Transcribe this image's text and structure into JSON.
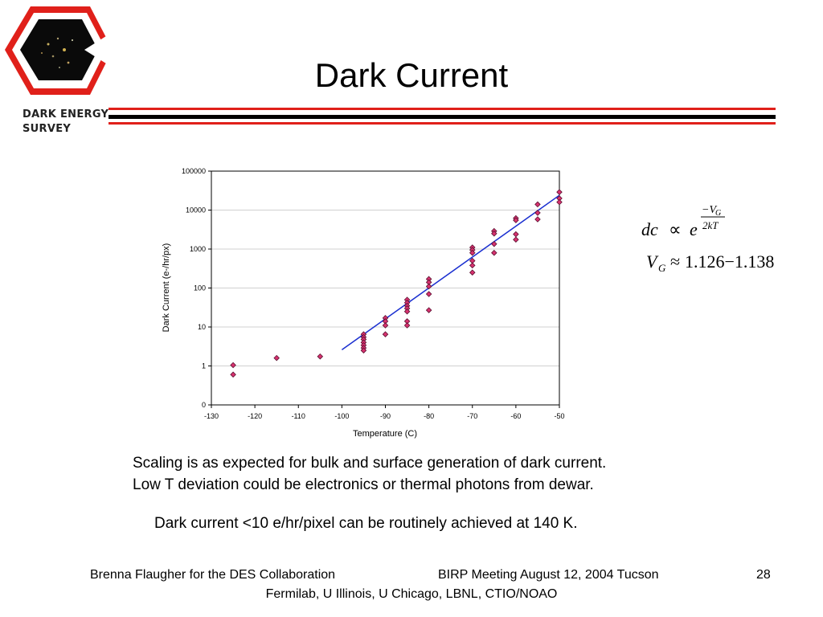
{
  "slide": {
    "title": "Dark Current",
    "logo": {
      "line1": "DARK ENERGY",
      "line2": "SURVEY"
    },
    "body": {
      "line1": "Scaling is as expected for bulk and surface generation of dark current.",
      "line2": "Low T deviation could be electronics or thermal photons from dewar.",
      "line3": "Dark current <10 e/hr/pixel can be routinely achieved at 140 K."
    },
    "formula": {
      "lhs": "dc",
      "prop": "∝",
      "base": "e",
      "exp_num": "−V",
      "exp_num_sub": "G",
      "exp_den": "2kT",
      "line2_var": "V",
      "line2_sub": "G",
      "line2_approx": "≈",
      "line2_range": "1.126−1.138"
    },
    "footer": {
      "author": "Brenna Flaugher for the DES Collaboration",
      "meeting": "BIRP Meeting August 12, 2004 Tucson",
      "page": "28",
      "institutions": "Fermilab, U Illinois, U Chicago, LBNL, CTIO/NOAO"
    }
  },
  "colors": {
    "accent_red": "#e0201a",
    "rule_black": "#000000",
    "marker_fill": "#d8326f",
    "marker_stroke": "#5a1030",
    "fit_line": "#1a2fd0",
    "grid": "#d0d0d0"
  },
  "chart_data": {
    "type": "scatter",
    "xlabel": "Temperature  (C)",
    "ylabel": "Dark Current (e-/hr/px)",
    "xlim": [
      -130,
      -50
    ],
    "xticks": [
      -130,
      -120,
      -110,
      -100,
      -90,
      -80,
      -70,
      -60,
      -50
    ],
    "y_scale": "log",
    "yticks": [
      0,
      1,
      10,
      100,
      1000,
      10000,
      100000
    ],
    "grid": true,
    "points": [
      [
        -125,
        1.05
      ],
      [
        -125,
        0.6
      ],
      [
        -115,
        1.6
      ],
      [
        -105,
        1.75
      ],
      [
        -95,
        6.5
      ],
      [
        -95,
        5.5
      ],
      [
        -95,
        4.8
      ],
      [
        -95,
        4.0
      ],
      [
        -95,
        3.4
      ],
      [
        -95,
        2.9
      ],
      [
        -95,
        2.5
      ],
      [
        -90,
        17
      ],
      [
        -90,
        14
      ],
      [
        -90,
        11
      ],
      [
        -90,
        6.5
      ],
      [
        -85,
        50
      ],
      [
        -85,
        42
      ],
      [
        -85,
        35
      ],
      [
        -85,
        30
      ],
      [
        -85,
        25
      ],
      [
        -85,
        14
      ],
      [
        -85,
        11
      ],
      [
        -80,
        170
      ],
      [
        -80,
        140
      ],
      [
        -80,
        110
      ],
      [
        -80,
        70
      ],
      [
        -80,
        27
      ],
      [
        -70,
        1100
      ],
      [
        -70,
        950
      ],
      [
        -70,
        800
      ],
      [
        -70,
        500
      ],
      [
        -70,
        380
      ],
      [
        -70,
        250
      ],
      [
        -65,
        2900
      ],
      [
        -65,
        2500
      ],
      [
        -65,
        1350
      ],
      [
        -65,
        800
      ],
      [
        -60,
        6200
      ],
      [
        -60,
        5500
      ],
      [
        -60,
        2400
      ],
      [
        -60,
        1750
      ],
      [
        -55,
        14000
      ],
      [
        -55,
        8500
      ],
      [
        -55,
        5800
      ],
      [
        -50,
        29000
      ],
      [
        -50,
        20000
      ],
      [
        -50,
        16000
      ]
    ],
    "fit_line": [
      [
        -100,
        2.6
      ],
      [
        -50,
        24000
      ]
    ]
  }
}
